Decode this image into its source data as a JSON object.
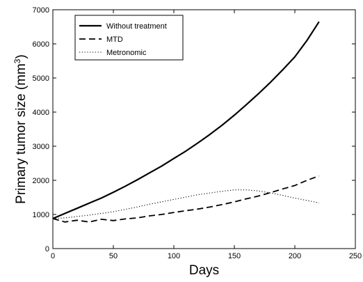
{
  "chart_data": {
    "type": "line",
    "title": "",
    "xlabel": "Days",
    "ylabel": "Primary tumor size (mm",
    "ylabel_sup": "3",
    "ylabel_end": ")",
    "xlim": [
      0,
      250
    ],
    "ylim": [
      0,
      7000
    ],
    "xticks": [
      0,
      50,
      100,
      150,
      200,
      250
    ],
    "yticks": [
      0,
      1000,
      2000,
      3000,
      4000,
      5000,
      6000,
      7000
    ],
    "grid": false,
    "legend_position": "top-left",
    "series": [
      {
        "name": "Without treatment",
        "style": "solid",
        "color": "#000000",
        "x": [
          0,
          10,
          20,
          30,
          40,
          50,
          60,
          70,
          80,
          90,
          100,
          110,
          120,
          130,
          140,
          150,
          160,
          170,
          180,
          190,
          200,
          210,
          220
        ],
        "y": [
          880,
          1030,
          1180,
          1330,
          1480,
          1650,
          1830,
          2020,
          2220,
          2420,
          2640,
          2860,
          3100,
          3350,
          3620,
          3910,
          4220,
          4540,
          4880,
          5240,
          5620,
          6100,
          6650
        ]
      },
      {
        "name": "MTD",
        "style": "dashed",
        "color": "#000000",
        "x": [
          0,
          10,
          20,
          30,
          40,
          50,
          60,
          70,
          80,
          90,
          100,
          110,
          120,
          130,
          140,
          150,
          160,
          170,
          180,
          190,
          200,
          210,
          220
        ],
        "y": [
          880,
          780,
          830,
          780,
          860,
          820,
          870,
          900,
          960,
          1000,
          1060,
          1110,
          1160,
          1220,
          1290,
          1370,
          1460,
          1540,
          1640,
          1750,
          1850,
          2000,
          2130
        ]
      },
      {
        "name": "Metronomic",
        "style": "dotted",
        "color": "#000000",
        "x": [
          0,
          10,
          20,
          30,
          40,
          50,
          60,
          70,
          80,
          90,
          100,
          110,
          120,
          130,
          140,
          150,
          160,
          170,
          180,
          190,
          200,
          210,
          220
        ],
        "y": [
          880,
          900,
          940,
          980,
          1030,
          1080,
          1150,
          1220,
          1300,
          1370,
          1440,
          1510,
          1580,
          1630,
          1680,
          1720,
          1720,
          1690,
          1630,
          1560,
          1480,
          1410,
          1340
        ]
      }
    ]
  }
}
